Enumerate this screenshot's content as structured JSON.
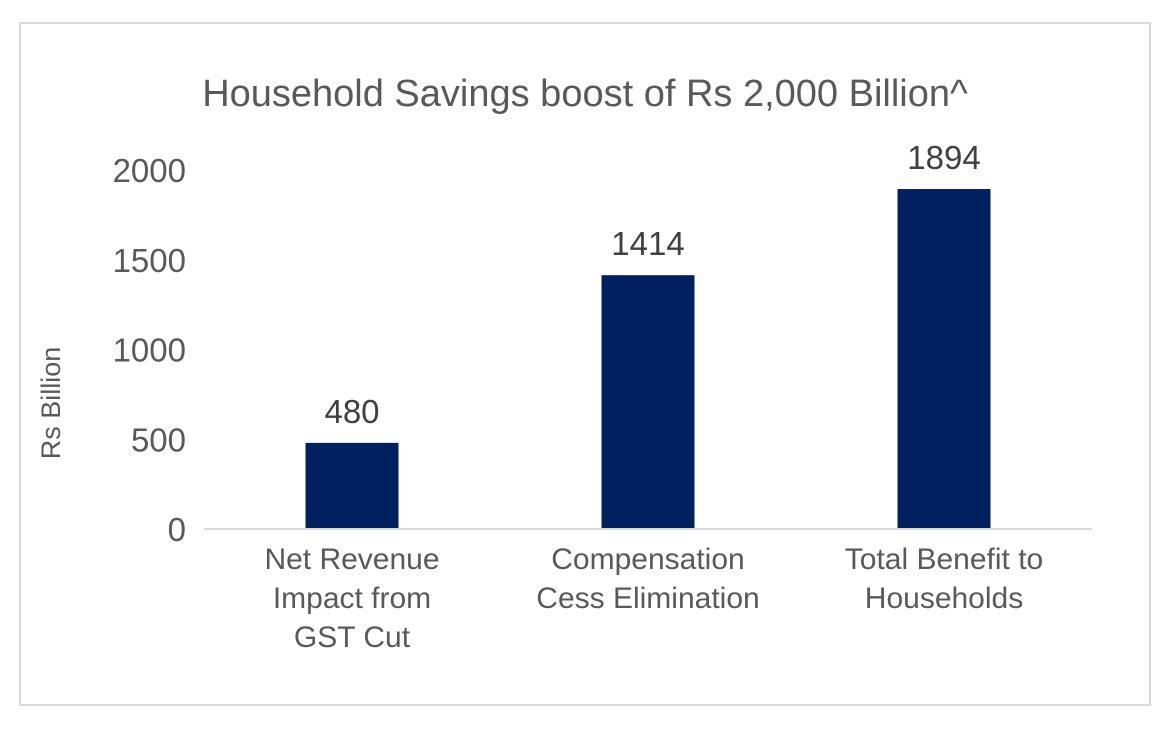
{
  "chart_data": {
    "type": "bar",
    "title": "Household Savings boost of Rs 2,000 Billion^",
    "xlabel": "",
    "ylabel": "Rs Billion",
    "categories": [
      [
        "Net Revenue",
        "Impact from",
        "GST Cut"
      ],
      [
        "Compensation",
        "Cess Elimination"
      ],
      [
        "Total Benefit to",
        "Households"
      ]
    ],
    "values": [
      480,
      1414,
      1894
    ],
    "data_labels": [
      "480",
      "1414",
      "1894"
    ],
    "yticks": [
      0,
      500,
      1000,
      1500,
      2000
    ],
    "ylim": [
      0,
      2000
    ],
    "grid": false,
    "bar_color": "#002060",
    "text_color": "#595959",
    "axis_color": "#d9d9d9"
  }
}
